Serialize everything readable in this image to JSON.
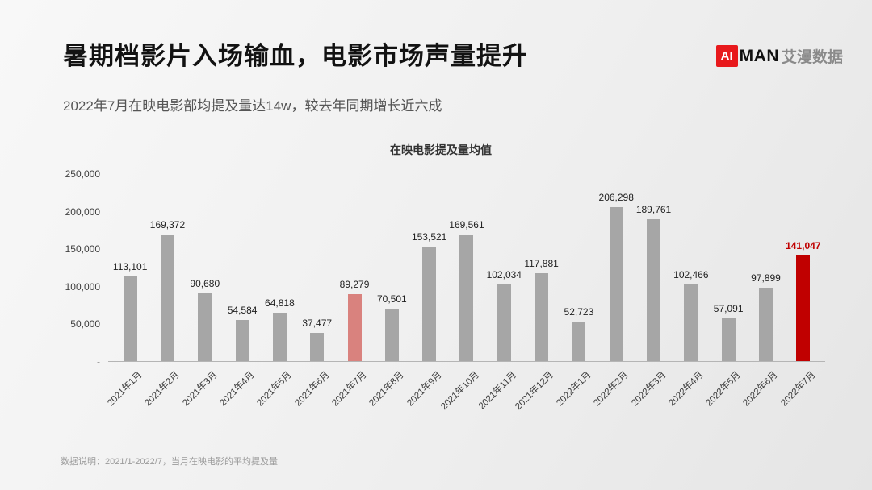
{
  "slide": {
    "title": "暑期档影片入场输血，电影市场声量提升",
    "subtitle": "2022年7月在映电影部均提及量达14w，较去年同期增长近六成",
    "footer": "数据说明：2021/1-2022/7，当月在映电影的平均提及量"
  },
  "logo": {
    "ai": "AI",
    "man": "MAN",
    "cn": "艾漫数据",
    "red": "#e8191c"
  },
  "chart_data": {
    "type": "bar",
    "title": "在映电影提及量均值",
    "categories": [
      "2021年1月",
      "2021年2月",
      "2021年3月",
      "2021年4月",
      "2021年5月",
      "2021年6月",
      "2021年7月",
      "2021年8月",
      "2021年9月",
      "2021年10月",
      "2021年11月",
      "2021年12月",
      "2022年1月",
      "2022年2月",
      "2022年3月",
      "2022年4月",
      "2022年5月",
      "2022年6月",
      "2022年7月"
    ],
    "values": [
      113101,
      169372,
      90680,
      54584,
      64818,
      37477,
      89279,
      70501,
      153521,
      169561,
      102034,
      117881,
      52723,
      206298,
      189761,
      102466,
      57091,
      97899,
      141047
    ],
    "labels": [
      "113,101",
      "169,372",
      "90,680",
      "54,584",
      "64,818",
      "37,477",
      "89,279",
      "70,501",
      "153,521",
      "169,561",
      "102,034",
      "117,881",
      "52,723",
      "206,298",
      "189,761",
      "102,466",
      "57,091",
      "97,899",
      "141,047"
    ],
    "xlabel": "",
    "ylabel": "",
    "ylim": [
      0,
      250000
    ],
    "yticks": [
      "250,000",
      "200,000",
      "150,000",
      "100,000",
      "50,000",
      "-"
    ],
    "grid": false,
    "legend": "none",
    "bar_color": "#a6a6a6",
    "highlight": [
      {
        "index": 6,
        "bar_color": "#d9827e",
        "label_color": "#1f1f1f",
        "label_bold": false
      },
      {
        "index": 18,
        "bar_color": "#c00000",
        "label_color": "#c00000",
        "label_bold": true
      }
    ]
  }
}
